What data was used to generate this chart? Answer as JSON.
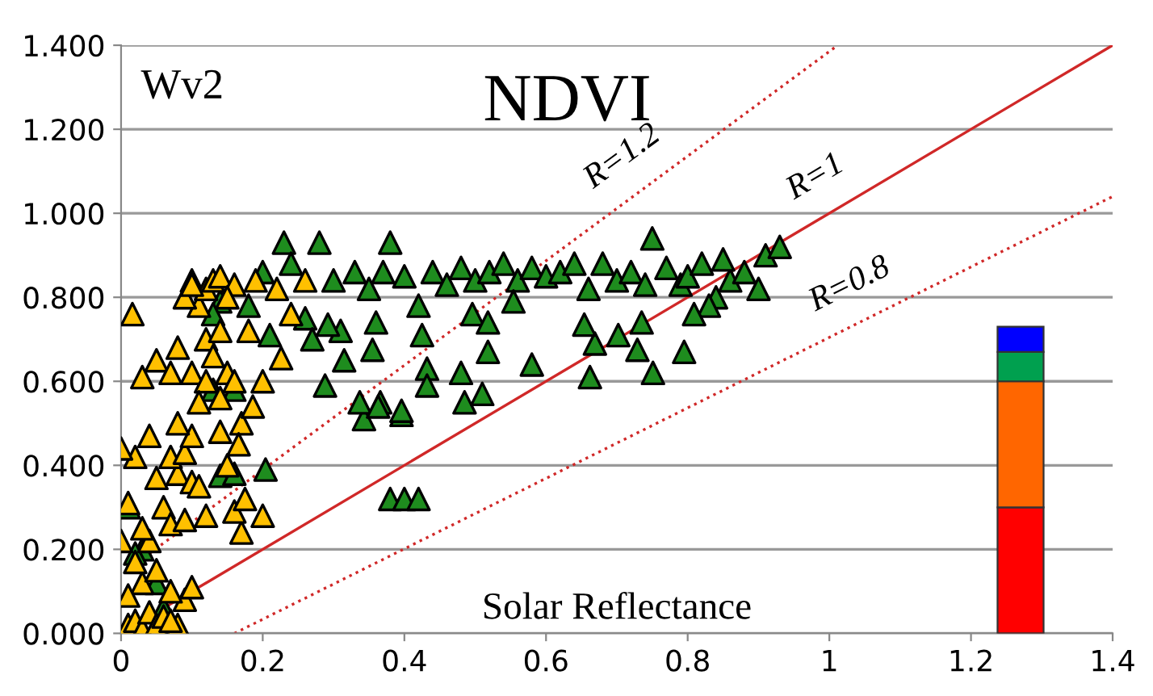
{
  "chart_data": {
    "type": "scatter",
    "title": "NDVI",
    "xlabel": "Solar Reflectance",
    "annotations": [
      "Wv2"
    ],
    "xlim": [
      0,
      1.4
    ],
    "ylim": [
      0,
      1.4
    ],
    "xticks": [
      0,
      0.2,
      0.4,
      0.6,
      0.8,
      1,
      1.2,
      1.4
    ],
    "yticks": [
      {
        "value": 0,
        "label": "0.000"
      },
      {
        "value": 0.2,
        "label": "0.200"
      },
      {
        "value": 0.4,
        "label": "0.400"
      },
      {
        "value": 0.6,
        "label": "0.600"
      },
      {
        "value": 0.8,
        "label": "0.800"
      },
      {
        "value": 1.0,
        "label": "1.000"
      },
      {
        "value": 1.2,
        "label": "1.200"
      },
      {
        "value": 1.4,
        "label": "1.400"
      }
    ],
    "grid": "y",
    "stacked": true,
    "series": [
      {
        "marker": "triangle",
        "color": "#1e8c1e",
        "x": [
          0.03,
          0.05,
          0.06,
          0.011,
          0.02,
          0.14,
          0.1,
          0.13,
          0.18,
          0.2,
          0.21,
          0.23,
          0.24,
          0.26,
          0.27,
          0.28,
          0.3,
          0.31,
          0.33,
          0.35,
          0.36,
          0.37,
          0.38,
          0.4,
          0.42,
          0.44,
          0.46,
          0.48,
          0.5,
          0.52,
          0.54,
          0.56,
          0.58,
          0.6,
          0.62,
          0.64,
          0.66,
          0.68,
          0.7,
          0.72,
          0.74,
          0.75,
          0.77,
          0.79,
          0.8,
          0.82,
          0.84,
          0.86,
          0.88,
          0.9,
          0.91,
          0.93,
          0.85,
          0.83,
          0.288,
          0.343,
          0.366,
          0.396,
          0.432,
          0.432,
          0.485,
          0.51,
          0.518,
          0.48,
          0.58,
          0.662,
          0.751,
          0.795,
          0.729,
          0.669,
          0.702,
          0.355,
          0.315,
          0.425,
          0.292,
          0.496,
          0.518,
          0.554,
          0.654,
          0.735,
          0.809,
          0.38,
          0.4,
          0.42,
          0.14,
          0.16,
          0.204,
          0.13,
          0.16,
          0.337,
          0.363,
          0.396
        ],
        "values": [
          0.2,
          0.12,
          0.06,
          0.3,
          0.19,
          0.79,
          0.84,
          0.76,
          0.78,
          0.86,
          0.71,
          0.93,
          0.88,
          0.75,
          0.7,
          0.93,
          0.84,
          0.72,
          0.86,
          0.82,
          0.74,
          0.86,
          0.93,
          0.85,
          0.78,
          0.86,
          0.83,
          0.87,
          0.84,
          0.86,
          0.88,
          0.84,
          0.87,
          0.85,
          0.86,
          0.88,
          0.82,
          0.88,
          0.84,
          0.86,
          0.83,
          0.94,
          0.87,
          0.83,
          0.85,
          0.88,
          0.8,
          0.84,
          0.86,
          0.82,
          0.9,
          0.92,
          0.89,
          0.78,
          0.59,
          0.51,
          0.55,
          0.52,
          0.63,
          0.59,
          0.55,
          0.57,
          0.67,
          0.62,
          0.64,
          0.61,
          0.62,
          0.67,
          0.675,
          0.69,
          0.71,
          0.675,
          0.65,
          0.71,
          0.735,
          0.76,
          0.74,
          0.79,
          0.735,
          0.74,
          0.76,
          0.32,
          0.32,
          0.32,
          0.375,
          0.38,
          0.39,
          0.58,
          0.58,
          0.55,
          0.54,
          0.53
        ]
      },
      {
        "marker": "triangle",
        "color": "#ffc000",
        "x": [
          0.01,
          0.02,
          0.03,
          0.04,
          0.05,
          0.06,
          0.08,
          0.09,
          0.07,
          0.03,
          0.05,
          0.01,
          0.02,
          0.04,
          0.0,
          0.03,
          0.01,
          0.06,
          0.07,
          0.09,
          0.05,
          0.08,
          0.1,
          0.07,
          0.09,
          0.11,
          0.12,
          0.17,
          0.16,
          0.1,
          0.08,
          0.02,
          0.0,
          0.04,
          0.14,
          0.2,
          0.17,
          0.15,
          0.03,
          0.05,
          0.07,
          0.08,
          0.1,
          0.12,
          0.13,
          0.14,
          0.15,
          0.16,
          0.016,
          0.11,
          0.12,
          0.13,
          0.14,
          0.09,
          0.1,
          0.16,
          0.15,
          0.18,
          0.19,
          0.22,
          0.12,
          0.11,
          0.14,
          0.186,
          0.166,
          0.175,
          0.2,
          0.1,
          0.07,
          0.226,
          0.26,
          0.24
        ],
        "values": [
          0.02,
          0.03,
          0.01,
          0.05,
          0.02,
          0.04,
          0.02,
          0.08,
          0.1,
          0.12,
          0.15,
          0.09,
          0.17,
          0.22,
          0.22,
          0.25,
          0.31,
          0.3,
          0.26,
          0.27,
          0.37,
          0.38,
          0.36,
          0.42,
          0.43,
          0.35,
          0.28,
          0.24,
          0.29,
          0.47,
          0.5,
          0.42,
          0.44,
          0.47,
          0.48,
          0.6,
          0.5,
          0.4,
          0.61,
          0.65,
          0.62,
          0.68,
          0.62,
          0.7,
          0.66,
          0.72,
          0.62,
          0.6,
          0.76,
          0.78,
          0.82,
          0.84,
          0.85,
          0.8,
          0.83,
          0.83,
          0.8,
          0.72,
          0.84,
          0.82,
          0.6,
          0.55,
          0.56,
          0.54,
          0.45,
          0.32,
          0.28,
          0.11,
          0.03,
          0.655,
          0.84,
          0.76
        ]
      },
      {
        "type": "line",
        "name": "R=1.2",
        "color": "#d02828",
        "line_style": "dotted",
        "x": [
          0.04,
          1.012
        ],
        "values": [
          0.19,
          1.4
        ]
      },
      {
        "type": "line",
        "name": "R=1",
        "color": "#d02828",
        "line_style": "solid",
        "x": [
          0,
          1.4
        ],
        "values": [
          0,
          1.4
        ]
      },
      {
        "type": "line",
        "name": "R=0.8",
        "color": "#d02828",
        "line_style": "dotted",
        "x": [
          0.16,
          1.4
        ],
        "values": [
          0,
          1.04
        ]
      },
      {
        "type": "bar",
        "color": "#ff0000",
        "x": [
          1.27
        ],
        "values": [
          0.3
        ]
      },
      {
        "type": "bar",
        "color": "#ff6600",
        "x": [
          1.27
        ],
        "values": [
          0.3
        ]
      },
      {
        "type": "bar",
        "color": "#00a04f",
        "x": [
          1.27
        ],
        "values": [
          0.07
        ]
      },
      {
        "type": "bar",
        "color": "#0000ff",
        "x": [
          1.27
        ],
        "values": [
          0.06
        ]
      }
    ]
  }
}
